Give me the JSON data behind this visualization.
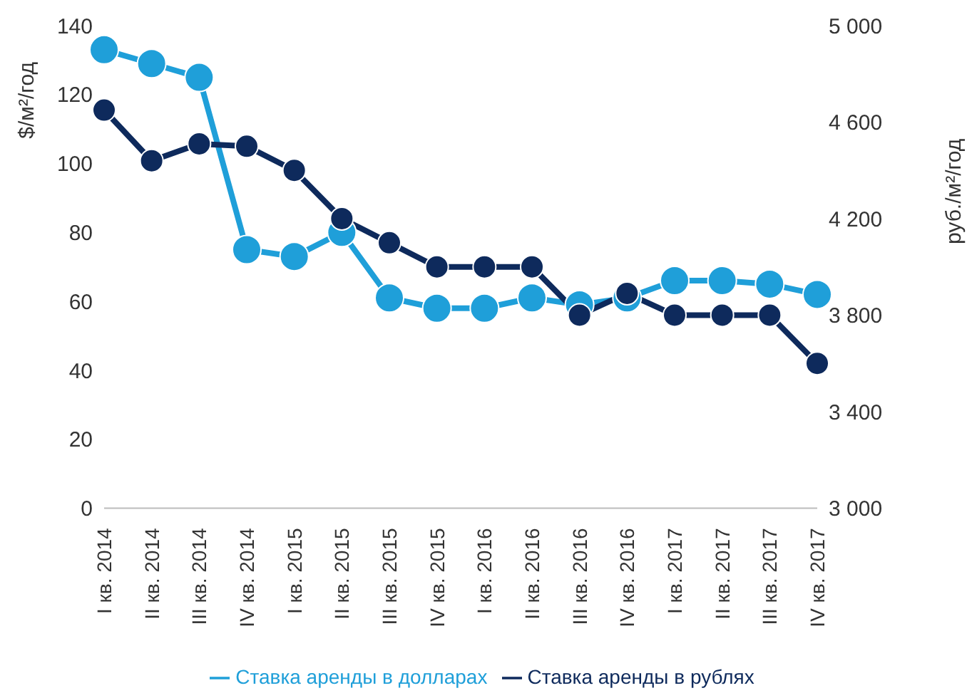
{
  "chart_data": {
    "type": "line",
    "ylabel": "$/м²/год",
    "y2label": "руб./м²/год",
    "categories": [
      "I кв. 2014",
      "II кв. 2014",
      "III кв. 2014",
      "IV кв. 2014",
      "I кв. 2015",
      "II кв. 2015",
      "III кв. 2015",
      "IV кв. 2015",
      "I кв. 2016",
      "II кв. 2016",
      "III кв. 2016",
      "IV кв. 2016",
      "I кв. 2017",
      "II кв. 2017",
      "III кв. 2017",
      "IV кв. 2017"
    ],
    "series": [
      {
        "name": "Ставка аренды в долларах",
        "color": "#1f9fd9",
        "values": [
          133,
          129,
          125,
          75,
          73,
          80,
          61,
          58,
          58,
          61,
          59,
          61,
          66,
          66,
          65,
          62
        ]
      },
      {
        "name": "Ставка аренды в рублях",
        "color": "#0e2a5c",
        "axis": "y2",
        "values": [
          4650,
          4440,
          4510,
          4500,
          4400,
          4200,
          4100,
          4000,
          4000,
          4000,
          3800,
          3890,
          3800,
          3800,
          3800,
          3600
        ]
      }
    ],
    "ylim": [
      0,
      140
    ],
    "yticks": [
      0,
      20,
      40,
      60,
      80,
      100,
      120,
      140
    ],
    "y2lim": [
      3000,
      5000
    ],
    "y2ticks": [
      {
        "value": 3000,
        "label": "3 000"
      },
      {
        "value": 3400,
        "label": "3 400"
      },
      {
        "value": 3800,
        "label": "3 800"
      },
      {
        "value": 4200,
        "label": "4 200"
      },
      {
        "value": 4600,
        "label": "4 600"
      },
      {
        "value": 5000,
        "label": "5 000"
      }
    ],
    "marker": "circle",
    "line_style": "solid",
    "grid": false,
    "legend": "bottom"
  }
}
